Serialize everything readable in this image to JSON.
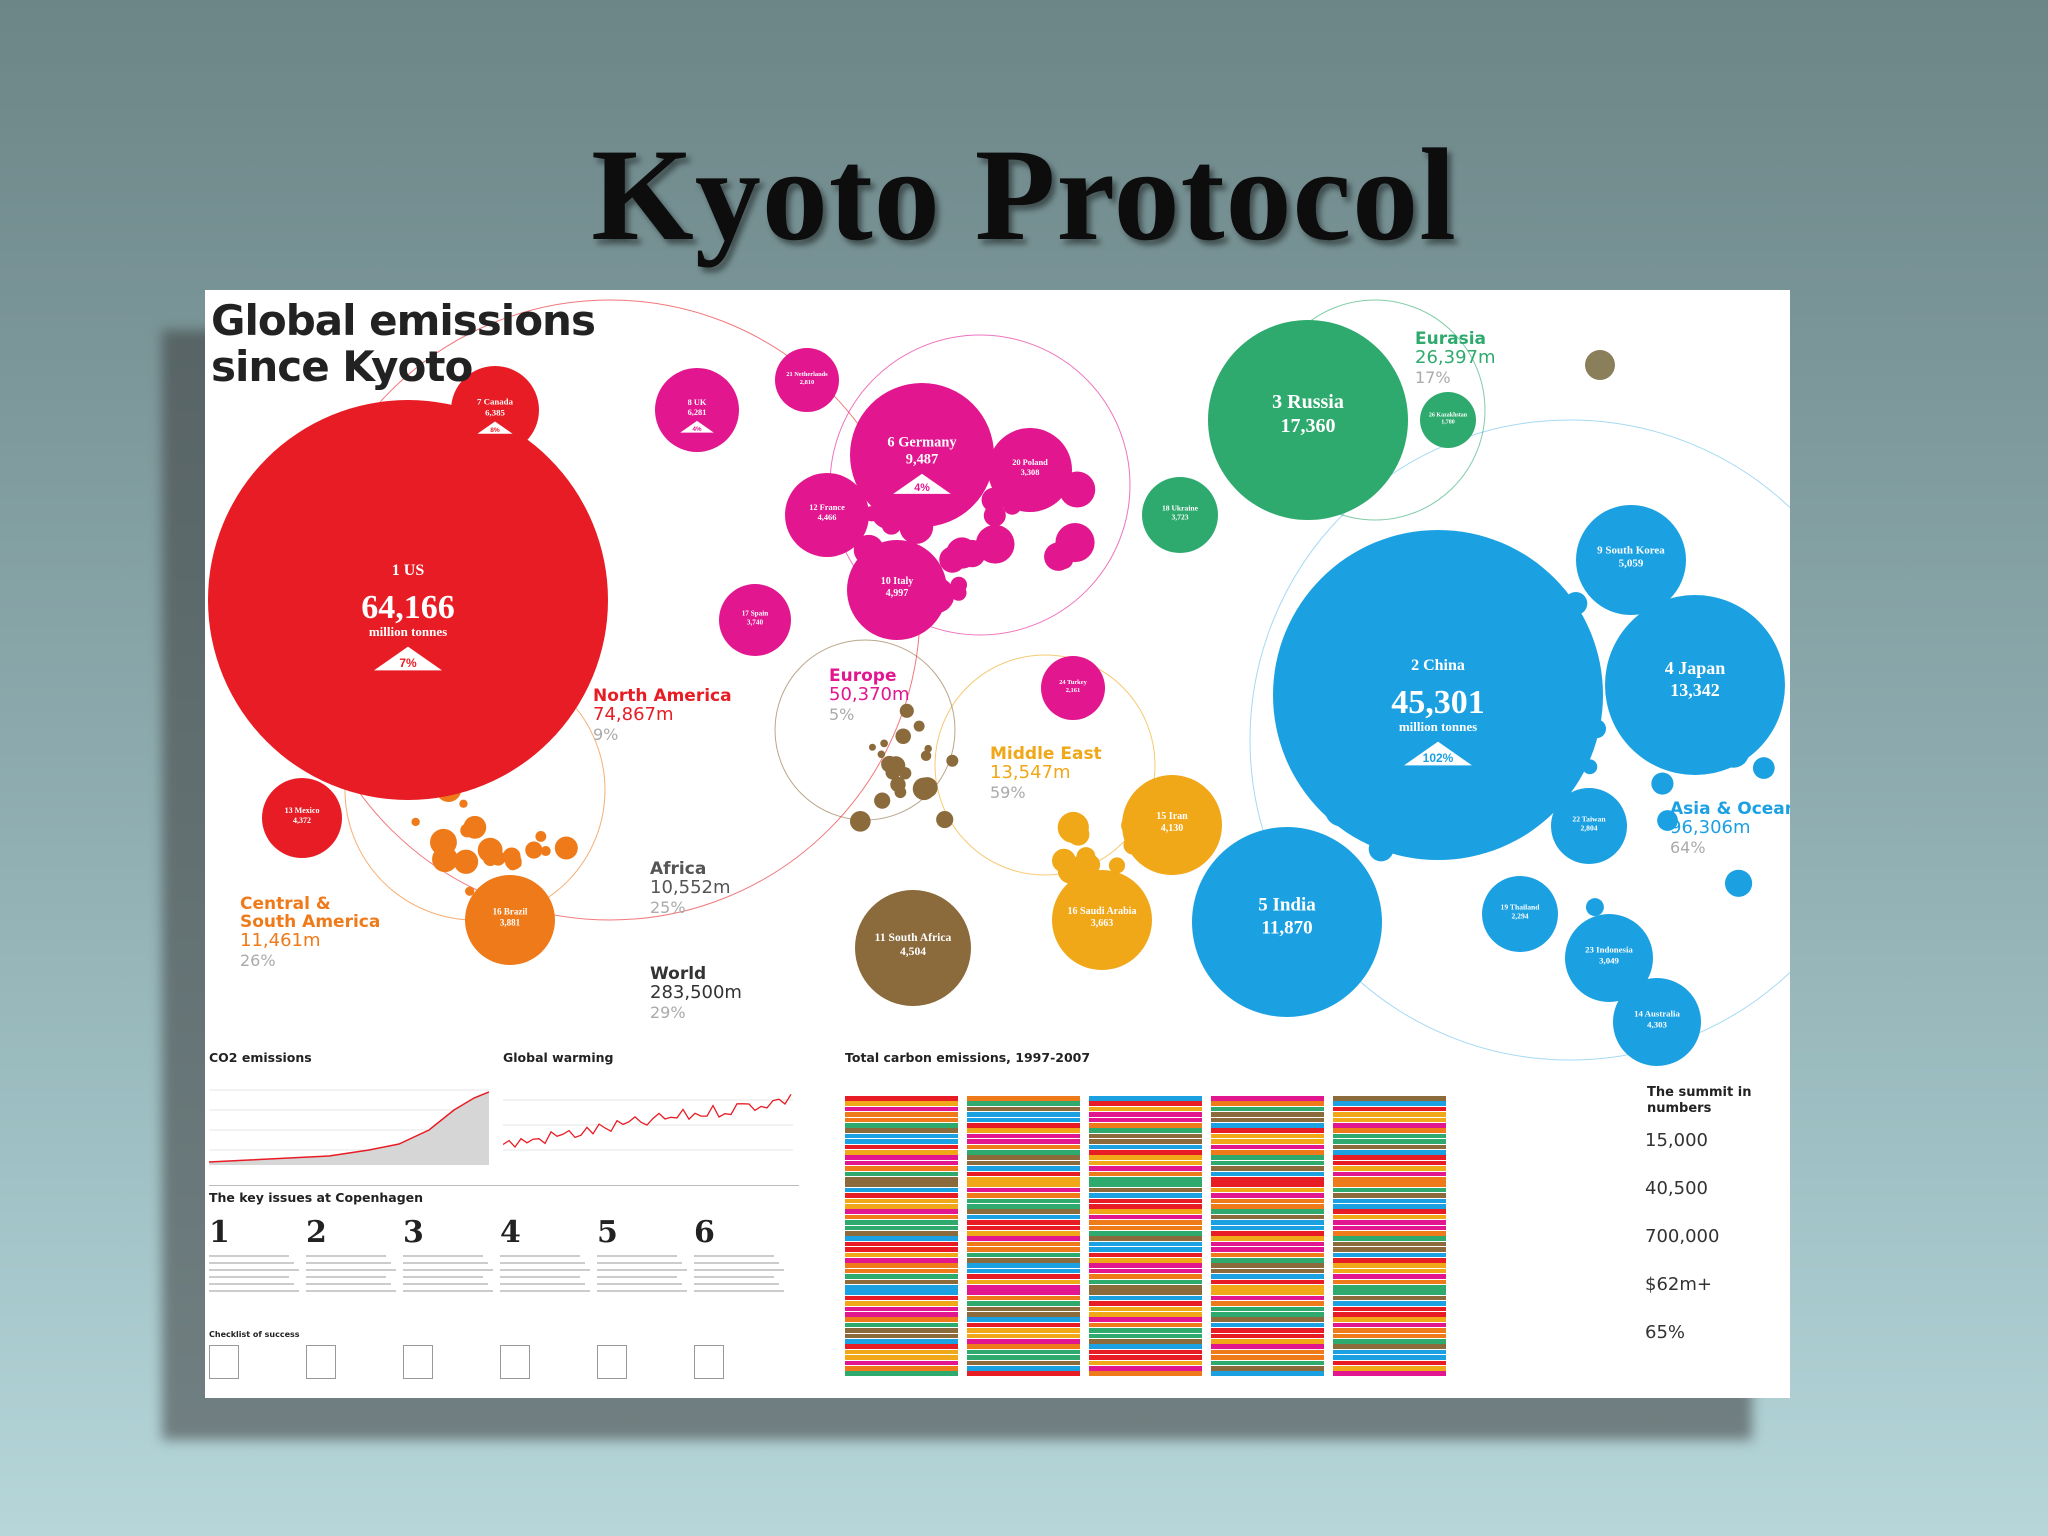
{
  "slide": {
    "title": "Kyoto Protocol"
  },
  "poster": {
    "heading_line1": "Global emissions",
    "heading_line2": "since Kyoto",
    "bubbles": [
      {
        "label": "1 US",
        "value": "64,166",
        "unit": "million tonnes",
        "change": "7%",
        "color": "#e81c24"
      },
      {
        "label": "7 Canada",
        "value": "6,385",
        "change": "8%",
        "color": "#e81c24"
      },
      {
        "label": "13 Mexico",
        "value": "4,372",
        "color": "#e81c24"
      },
      {
        "label": "8 UK",
        "value": "6,281",
        "change": "4%",
        "color": "#e2168f"
      },
      {
        "label": "6 Germany",
        "value": "9,487",
        "change": "4%",
        "color": "#e2168f"
      },
      {
        "label": "12 France",
        "value": "4,466",
        "color": "#e2168f"
      },
      {
        "label": "10 Italy",
        "value": "4,997",
        "color": "#e2168f"
      },
      {
        "label": "17 Spain",
        "value": "3,740",
        "color": "#e2168f"
      },
      {
        "label": "20 Poland",
        "value": "3,308",
        "color": "#e2168f"
      },
      {
        "label": "21 Netherlands",
        "value": "2,810",
        "color": "#e2168f"
      },
      {
        "label": "24 Turkey",
        "value": "2,161",
        "color": "#e2168f"
      },
      {
        "label": "3 Russia",
        "value": "17,360",
        "color": "#2faa6e"
      },
      {
        "label": "18 Ukraine",
        "value": "3,723",
        "color": "#2faa6e"
      },
      {
        "label": "26 Kazakhstan",
        "value": "1,780",
        "color": "#2faa6e"
      },
      {
        "label": "2 China",
        "value": "45,301",
        "unit": "million tonnes",
        "change": "102%",
        "color": "#1ba1e2"
      },
      {
        "label": "4 Japan",
        "value": "13,342",
        "color": "#1ba1e2"
      },
      {
        "label": "9 South Korea",
        "value": "5,059",
        "color": "#1ba1e2"
      },
      {
        "label": "5 India",
        "value": "11,870",
        "color": "#1ba1e2"
      },
      {
        "label": "14 Australia",
        "value": "4,303",
        "color": "#1ba1e2"
      },
      {
        "label": "22 Taiwan",
        "value": "2,804",
        "color": "#1ba1e2"
      },
      {
        "label": "19 Thailand",
        "value": "2,294",
        "color": "#1ba1e2"
      },
      {
        "label": "23 Indonesia",
        "value": "3,049",
        "color": "#1ba1e2"
      },
      {
        "label": "15 Iran",
        "value": "4,130",
        "color": "#f0a718"
      },
      {
        "label": "16 Saudi Arabia",
        "value": "3,663",
        "color": "#f0a718"
      },
      {
        "label": "11 South Africa",
        "value": "4,504",
        "color": "#8b6a3c"
      },
      {
        "label": "16 Brazil",
        "value": "3,881",
        "color": "#ef7a1a"
      }
    ],
    "regions": [
      {
        "name": "North America",
        "total": "74,867m",
        "pct": "9%",
        "color": "#e81c24"
      },
      {
        "name": "Europe",
        "total": "50,370m",
        "pct": "5%",
        "color": "#e2168f"
      },
      {
        "name": "Eurasia",
        "total": "26,397m",
        "pct": "17%",
        "color": "#2faa6e"
      },
      {
        "name": "Middle East",
        "total": "13,547m",
        "pct": "59%",
        "color": "#f0a718"
      },
      {
        "name": "Africa",
        "total": "10,552m",
        "pct": "25%",
        "color": "#555555"
      },
      {
        "name": "World",
        "total": "283,500m",
        "pct": "29%",
        "color": "#333333"
      },
      {
        "name": "Central & South America",
        "total": "11,461m",
        "pct": "26%",
        "color": "#ef7a1a"
      },
      {
        "name": "Asia & Oceania",
        "total": "96,306m",
        "pct": "64%",
        "color": "#1ba1e2"
      }
    ],
    "co2": {
      "title": "CO2 emissions"
    },
    "warming": {
      "title": "Global warming"
    },
    "total": {
      "title": "Total carbon emissions, 1997-2007"
    },
    "issues": {
      "title": "The key issues at Copenhagen",
      "items": [
        {
          "num": "1"
        },
        {
          "num": "2"
        },
        {
          "num": "3"
        },
        {
          "num": "4"
        },
        {
          "num": "5"
        },
        {
          "num": "6"
        }
      ],
      "checklist": "Checklist of success"
    },
    "summit": {
      "title": "The summit in numbers",
      "stats": [
        "15,000",
        "40,500",
        "700,000",
        "$62m+",
        "65%"
      ]
    }
  },
  "chart_data": [
    {
      "type": "bubble",
      "title": "Global emissions since Kyoto",
      "unit": "million tonnes",
      "categories": [
        "US",
        "China",
        "Russia",
        "Japan",
        "India",
        "Germany",
        "Canada",
        "UK",
        "South Korea",
        "Italy",
        "South Africa",
        "France",
        "Mexico",
        "Australia",
        "Iran",
        "Saudi Arabia",
        "Brazil",
        "Spain",
        "Ukraine",
        "Poland",
        "Netherlands",
        "Taiwan",
        "Indonesia",
        "Turkey",
        "Thailand",
        "Kazakhstan"
      ],
      "values": [
        64166,
        45301,
        17360,
        13342,
        11870,
        9487,
        6385,
        6281,
        5059,
        4997,
        4504,
        4466,
        4372,
        4303,
        4130,
        3663,
        3881,
        3740,
        3723,
        3308,
        2810,
        2804,
        3049,
        2161,
        2294,
        1780
      ]
    }
  ]
}
